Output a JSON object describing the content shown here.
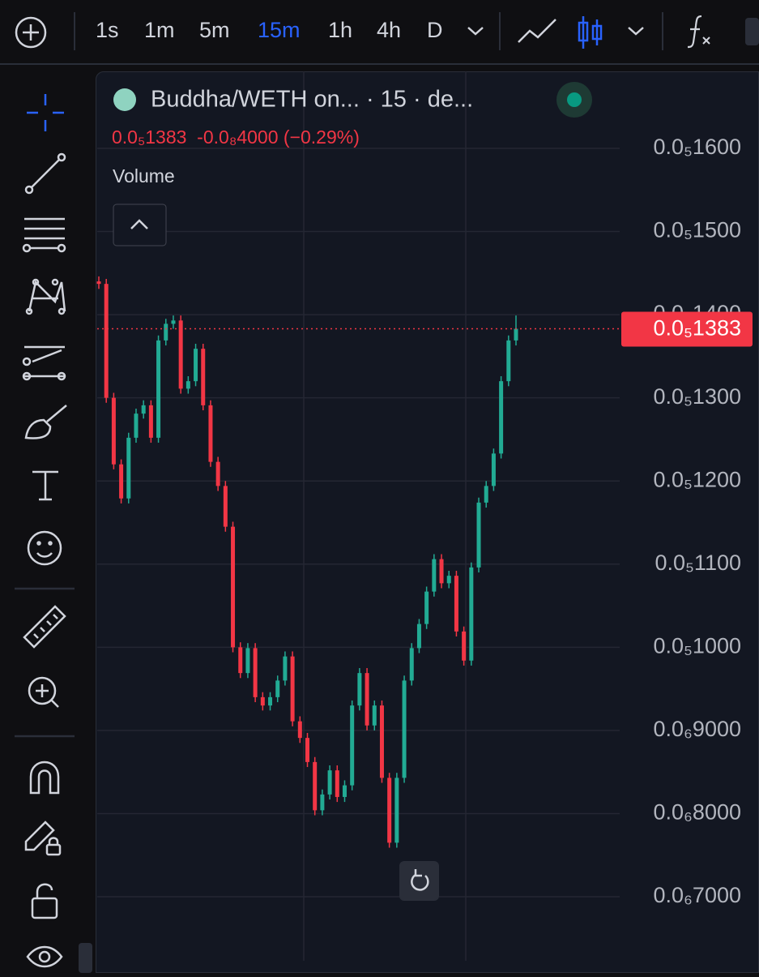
{
  "toolbar": {
    "intervals": [
      "1s",
      "1m",
      "5m",
      "15m",
      "1h",
      "4h",
      "D"
    ],
    "active_interval_index": 3
  },
  "legend": {
    "symbol": "Buddha/WETH on... · 15 · de...",
    "quote": "0.0₅1383  -0.0₈4000 (−0.29%)",
    "volume_label": "Volume"
  },
  "chart_data": {
    "type": "candlestick",
    "up_color": "#22ab94",
    "down_color": "#f23645",
    "ylim": [
      6.23e-07,
      1.6926e-06
    ],
    "yticks": [
      {
        "value": 1.6e-06,
        "label": "0.0₅1600"
      },
      {
        "value": 1.5e-06,
        "label": "0.0₅1500"
      },
      {
        "value": 1.4e-06,
        "label": "0.0₅1400"
      },
      {
        "value": 1.3e-06,
        "label": "0.0₅1300"
      },
      {
        "value": 1.2e-06,
        "label": "0.0₅1200"
      },
      {
        "value": 1.1e-06,
        "label": "0.0₅1100"
      },
      {
        "value": 1e-06,
        "label": "0.0₅1000"
      },
      {
        "value": 9e-07,
        "label": "0.0₆9000"
      },
      {
        "value": 8e-07,
        "label": "0.0₆8000"
      },
      {
        "value": 7e-07,
        "label": "0.0₆7000"
      }
    ],
    "grid": true,
    "last_price": {
      "value": 1.383e-06,
      "label": "0.0₅1383"
    },
    "open": [
      1.44e-06,
      1.437e-06,
      1.3e-06,
      1.22e-06,
      1.179e-06,
      1.252e-06,
      1.281e-06,
      1.291e-06,
      1.252e-06,
      1.369e-06,
      1.389e-06,
      1.393e-06,
      1.311e-06,
      1.32e-06,
      1.359e-06,
      1.291e-06,
      1.223e-06,
      1.194e-06,
      1.145e-06,
      1e-06,
      9.69e-07,
      9.99e-07,
      9.4e-07,
      9.3e-07,
      9.4e-07,
      9.6e-07,
      9.89e-07,
      9.11e-07,
      8.91e-07,
      8.62e-07,
      8.04e-07,
      8.23e-07,
      8.52e-07,
      8.2e-07,
      8.34e-07,
      9.3e-07,
      9.69e-07,
      9.06e-07,
      9.3e-07,
      8.43e-07,
      7.65e-07,
      8.43e-07,
      9.6e-07,
      9.99e-07,
      1.028e-06,
      1.067e-06,
      1.106e-06,
      1.077e-06,
      1.086e-06,
      1.019e-06,
      9.84e-07,
      1.096e-06,
      1.174e-06,
      1.194e-06,
      1.233e-06,
      1.32e-06,
      1.369e-06
    ],
    "high": [
      1.446e-06,
      1.443e-06,
      1.306e-06,
      1.226e-06,
      1.258e-06,
      1.287e-06,
      1.297e-06,
      1.297e-06,
      1.375e-06,
      1.395e-06,
      1.399e-06,
      1.399e-06,
      1.326e-06,
      1.365e-06,
      1.365e-06,
      1.297e-06,
      1.229e-06,
      1.2e-06,
      1.151e-06,
      1.006e-06,
      1.005e-06,
      1.005e-06,
      9.46e-07,
      9.46e-07,
      9.66e-07,
      9.95e-07,
      9.95e-07,
      9.17e-07,
      8.97e-07,
      8.68e-07,
      8.29e-07,
      8.58e-07,
      8.58e-07,
      8.4e-07,
      9.36e-07,
      9.75e-07,
      9.75e-07,
      9.36e-07,
      9.36e-07,
      8.49e-07,
      8.49e-07,
      9.66e-07,
      1.005e-06,
      1.034e-06,
      1.073e-06,
      1.112e-06,
      1.112e-06,
      1.092e-06,
      1.092e-06,
      1.025e-06,
      1.102e-06,
      1.18e-06,
      1.2e-06,
      1.239e-06,
      1.326e-06,
      1.375e-06,
      1.399e-06
    ],
    "low": [
      1.431e-06,
      1.294e-06,
      1.214e-06,
      1.173e-06,
      1.173e-06,
      1.246e-06,
      1.275e-06,
      1.246e-06,
      1.246e-06,
      1.363e-06,
      1.383e-06,
      1.305e-06,
      1.305e-06,
      1.314e-06,
      1.285e-06,
      1.217e-06,
      1.188e-06,
      1.139e-06,
      9.94e-07,
      9.63e-07,
      9.63e-07,
      9.34e-07,
      9.24e-07,
      9.24e-07,
      9.34e-07,
      9.54e-07,
      9.05e-07,
      8.85e-07,
      8.56e-07,
      7.98e-07,
      7.98e-07,
      8.17e-07,
      8.14e-07,
      8.14e-07,
      8.28e-07,
      9.24e-07,
      9e-07,
      9e-07,
      8.37e-07,
      7.59e-07,
      7.59e-07,
      8.37e-07,
      9.54e-07,
      9.93e-07,
      1.022e-06,
      1.061e-06,
      1.071e-06,
      1.071e-06,
      1.013e-06,
      9.78e-07,
      9.78e-07,
      1.09e-06,
      1.168e-06,
      1.188e-06,
      1.227e-06,
      1.314e-06,
      1.363e-06
    ],
    "close": [
      1.437e-06,
      1.3e-06,
      1.22e-06,
      1.179e-06,
      1.252e-06,
      1.281e-06,
      1.291e-06,
      1.252e-06,
      1.369e-06,
      1.389e-06,
      1.393e-06,
      1.311e-06,
      1.32e-06,
      1.359e-06,
      1.291e-06,
      1.223e-06,
      1.194e-06,
      1.145e-06,
      1e-06,
      9.69e-07,
      9.99e-07,
      9.4e-07,
      9.3e-07,
      9.4e-07,
      9.6e-07,
      9.89e-07,
      9.11e-07,
      8.91e-07,
      8.62e-07,
      8.04e-07,
      8.23e-07,
      8.52e-07,
      8.2e-07,
      8.34e-07,
      9.3e-07,
      9.69e-07,
      9.06e-07,
      9.3e-07,
      8.43e-07,
      7.65e-07,
      8.43e-07,
      9.6e-07,
      9.99e-07,
      1.028e-06,
      1.067e-06,
      1.106e-06,
      1.077e-06,
      1.086e-06,
      1.019e-06,
      9.84e-07,
      1.096e-06,
      1.174e-06,
      1.194e-06,
      1.233e-06,
      1.32e-06,
      1.369e-06,
      1.383e-06
    ]
  }
}
